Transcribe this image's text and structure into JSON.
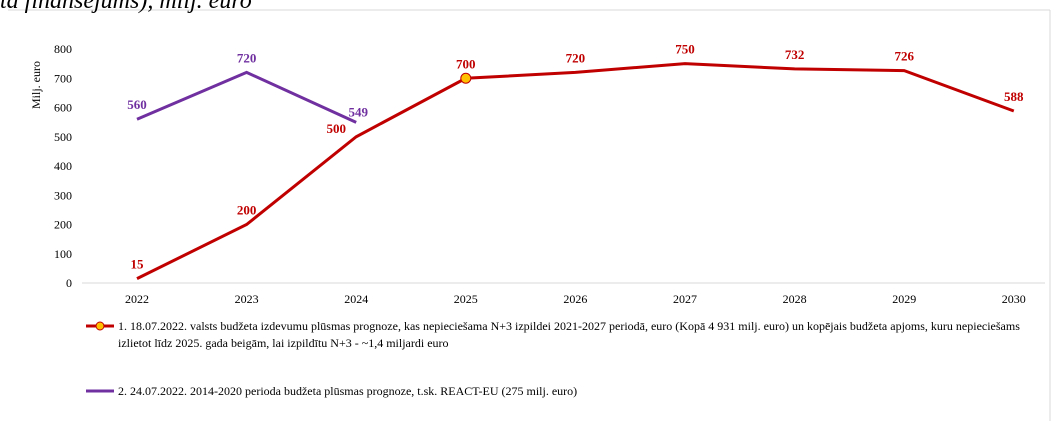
{
  "chart_data": {
    "type": "line",
    "title": "ta finansējums), milj. euro",
    "y_label": "Milj. euro",
    "categories": [
      "2022",
      "2023",
      "2024",
      "2025",
      "2026",
      "2027",
      "2028",
      "2029",
      "2030"
    ],
    "series": [
      {
        "name": "1. 18.07.2022. valsts budžeta izdevumu plūsmas prognoze, kas nepieciešama N+3 izpildei 2021-2027 periodā, euro (Kopā 4 931 milj. euro) un kopējais budžeta apjoms, kuru nepieciešams izlietot līdz 2025. gada beigām, lai izpildītu N+3 - ~1,4 miljardi euro",
        "color": "#c00000",
        "marker_color": "#ffc000",
        "values": [
          15,
          200,
          500,
          700,
          720,
          750,
          732,
          726,
          588
        ]
      },
      {
        "name": "2. 24.07.2022. 2014-2020 perioda budžeta plūsmas prognoze, t.sk. REACT-EU (275 milj. euro)",
        "color": "#7030a0",
        "values": [
          560,
          720,
          549,
          null,
          null,
          null,
          null,
          null,
          null
        ]
      }
    ],
    "ylim": [
      0,
      800
    ],
    "yticks": [
      0,
      100,
      200,
      300,
      400,
      500,
      600,
      700,
      800
    ]
  }
}
